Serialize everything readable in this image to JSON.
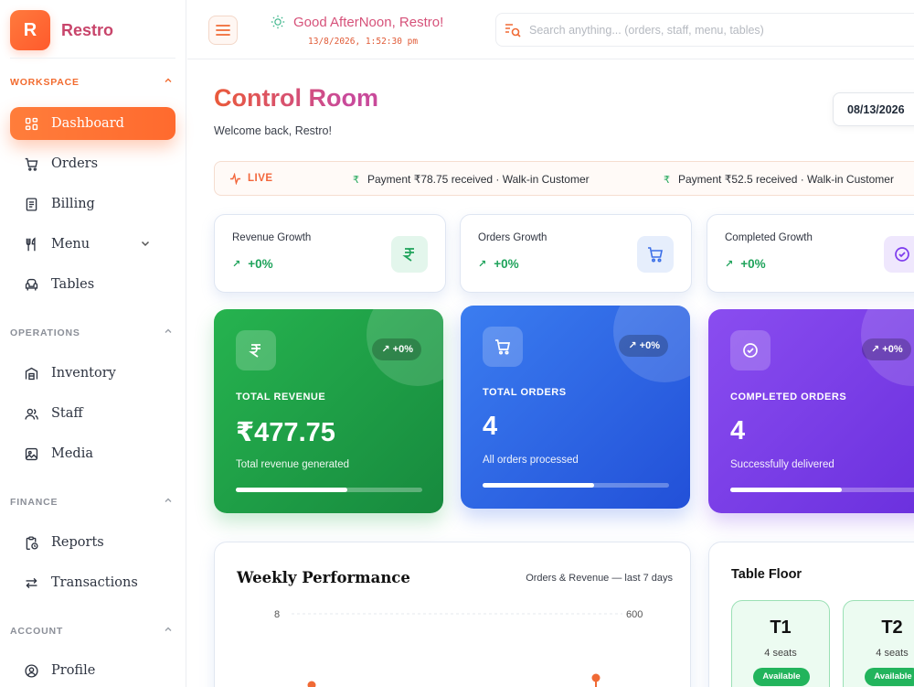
{
  "brand": {
    "logo_letter": "R",
    "name": "Restro"
  },
  "sidebar": {
    "sections": [
      {
        "title": "WORKSPACE",
        "items": [
          {
            "label": "Dashboard",
            "icon": "dashboard-icon"
          },
          {
            "label": "Orders",
            "icon": "cart-icon"
          },
          {
            "label": "Billing",
            "icon": "receipt-icon"
          },
          {
            "label": "Menu",
            "icon": "utensils-icon"
          },
          {
            "label": "Tables",
            "icon": "armchair-icon"
          }
        ]
      },
      {
        "title": "OPERATIONS",
        "items": [
          {
            "label": "Inventory",
            "icon": "warehouse-icon"
          },
          {
            "label": "Staff",
            "icon": "users-icon"
          },
          {
            "label": "Media",
            "icon": "image-icon"
          }
        ]
      },
      {
        "title": "FINANCE",
        "items": [
          {
            "label": "Reports",
            "icon": "clipboard-clock-icon"
          },
          {
            "label": "Transactions",
            "icon": "arrows-left-right-icon"
          }
        ]
      },
      {
        "title": "ACCOUNT",
        "items": [
          {
            "label": "Profile",
            "icon": "user-circle-icon"
          }
        ]
      }
    ]
  },
  "header": {
    "greeting": "Good AfterNoon, Restro!",
    "clock": "13/8/2026, 1:52:30 pm",
    "search_placeholder": "Search anything... (orders, staff, menu, tables)"
  },
  "main": {
    "title": "Control Room",
    "welcome": "Welcome back, Restro!",
    "date": "08/13/2026",
    "ticker": {
      "live_label": "LIVE",
      "items": [
        "Payment ₹78.75 received · Walk-in Customer",
        "Payment ₹52.5 received · Walk-in Customer"
      ]
    },
    "growth_cards": [
      {
        "label": "Revenue Growth",
        "value": "+0%",
        "icon": "rupee-icon",
        "color": "#1fa35b"
      },
      {
        "label": "Orders Growth",
        "value": "+0%",
        "icon": "cart-icon",
        "color": "#3b6fe8"
      },
      {
        "label": "Completed Growth",
        "value": "+0%",
        "icon": "check-circle-icon",
        "color": "#7c3aed"
      }
    ],
    "stat_cards": [
      {
        "title": "TOTAL REVENUE",
        "value": "₹477.75",
        "sub": "Total revenue generated",
        "badge": "+0%",
        "progress": 0.6,
        "icon": "rupee-icon",
        "colors": [
          "#26b34f",
          "#178a3e"
        ]
      },
      {
        "title": "TOTAL ORDERS",
        "value": "4",
        "sub": "All orders processed",
        "badge": "+0%",
        "progress": 0.6,
        "icon": "cart-icon",
        "colors": [
          "#3b7df0",
          "#2250d8"
        ]
      },
      {
        "title": "COMPLETED ORDERS",
        "value": "4",
        "sub": "Successfully delivered",
        "badge": "+0%",
        "progress": 0.6,
        "icon": "check-circle-icon",
        "colors": [
          "#8a4df0",
          "#6a2fdd"
        ]
      }
    ],
    "weekly": {
      "title": "Weekly Performance",
      "subtitle": "Orders & Revenue — last 7 days",
      "left_axis_top": "8",
      "right_axis_top": "600"
    },
    "table_floor": {
      "title": "Table Floor",
      "tables": [
        {
          "name": "T1",
          "seats": "4 seats",
          "status": "Available"
        },
        {
          "name": "T2",
          "seats": "4 seats",
          "status": "Available"
        }
      ]
    }
  }
}
